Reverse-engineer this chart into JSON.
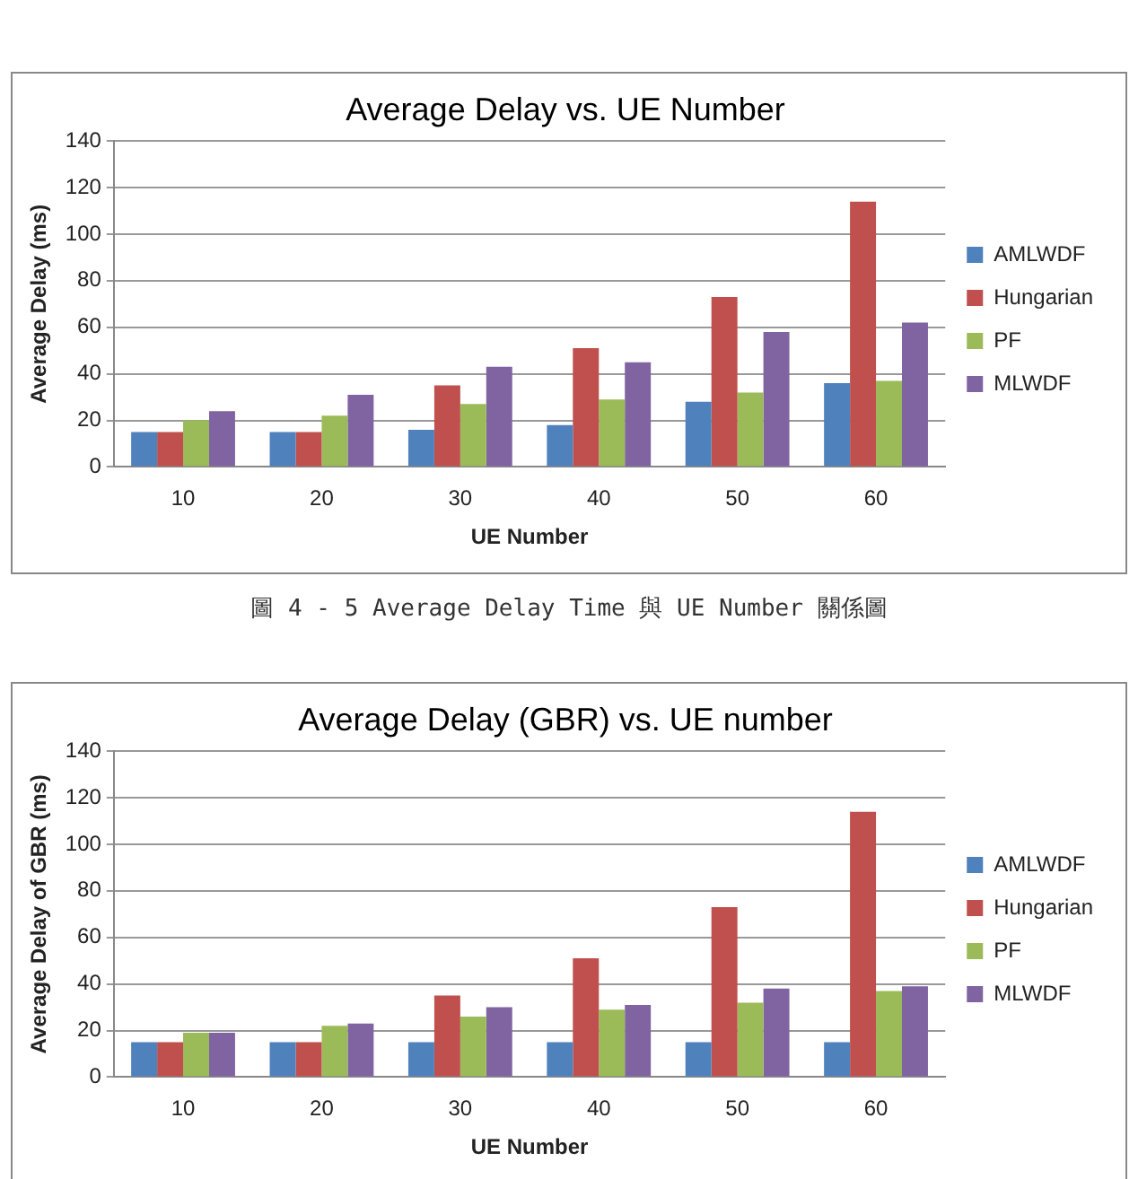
{
  "chart_data": [
    {
      "type": "bar",
      "title": "Average Delay vs. UE Number",
      "xlabel": "UE Number",
      "ylabel": "Average Delay (ms)",
      "categories": [
        "10",
        "20",
        "30",
        "40",
        "50",
        "60"
      ],
      "series": [
        {
          "name": "AMLWDF",
          "color": "#4f81bd",
          "values": [
            15,
            15,
            16,
            18,
            28,
            36
          ]
        },
        {
          "name": "Hungarian",
          "color": "#c0504d",
          "values": [
            15,
            15,
            35,
            51,
            73,
            114
          ]
        },
        {
          "name": "PF",
          "color": "#9bbb59",
          "values": [
            20,
            22,
            27,
            29,
            32,
            37
          ]
        },
        {
          "name": "MLWDF",
          "color": "#8064a2",
          "values": [
            24,
            31,
            43,
            45,
            58,
            62
          ]
        }
      ],
      "ylim": [
        0,
        140
      ],
      "yticks": [
        0,
        20,
        40,
        60,
        80,
        100,
        120,
        140
      ],
      "grid": "y",
      "legend": "right",
      "annotations": [
        "圖 4 - 5 Average Delay Time 與 UE Number 關係圖"
      ]
    },
    {
      "type": "bar",
      "title": "Average Delay (GBR) vs. UE number",
      "xlabel": "UE Number",
      "ylabel": "Average Delay of GBR (ms)",
      "categories": [
        "10",
        "20",
        "30",
        "40",
        "50",
        "60"
      ],
      "series": [
        {
          "name": "AMLWDF",
          "color": "#4f81bd",
          "values": [
            15,
            15,
            15,
            15,
            15,
            15
          ]
        },
        {
          "name": "Hungarian",
          "color": "#c0504d",
          "values": [
            15,
            15,
            35,
            51,
            73,
            114
          ]
        },
        {
          "name": "PF",
          "color": "#9bbb59",
          "values": [
            19,
            22,
            26,
            29,
            32,
            37
          ]
        },
        {
          "name": "MLWDF",
          "color": "#8064a2",
          "values": [
            19,
            23,
            30,
            31,
            38,
            39
          ]
        }
      ],
      "ylim": [
        0,
        140
      ],
      "yticks": [
        0,
        20,
        40,
        60,
        80,
        100,
        120,
        140
      ],
      "grid": "y",
      "legend": "right"
    }
  ]
}
